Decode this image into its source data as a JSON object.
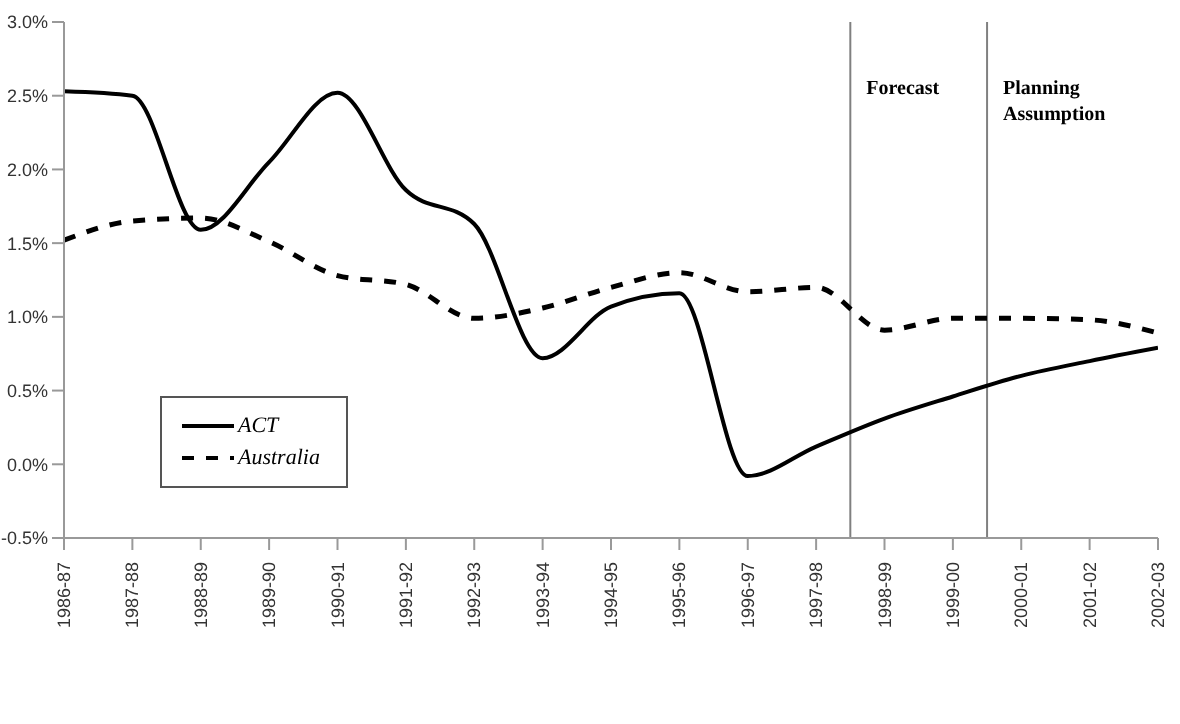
{
  "chart_data": {
    "type": "line",
    "categories": [
      "1986-87",
      "1987-88",
      "1988-89",
      "1989-90",
      "1990-91",
      "1991-92",
      "1992-93",
      "1993-94",
      "1994-95",
      "1995-96",
      "1996-97",
      "1997-98",
      "1998-99",
      "1999-00",
      "2000-01",
      "2001-02",
      "2002-03"
    ],
    "ylim": [
      -0.5,
      3.0
    ],
    "yticks": [
      {
        "value": -0.5,
        "label": "-0.5%"
      },
      {
        "value": 0,
        "label": "0.0%"
      },
      {
        "value": 0.5,
        "label": "0.5%"
      },
      {
        "value": 1.0,
        "label": "1.0%"
      },
      {
        "value": 1.5,
        "label": "1.5%"
      },
      {
        "value": 2.0,
        "label": "2.0%"
      },
      {
        "value": 2.5,
        "label": "2.5%"
      },
      {
        "value": 3.0,
        "label": "3.0%"
      }
    ],
    "series": [
      {
        "name": "ACT",
        "color": "#000000",
        "line_style": "solid",
        "values": [
          2.53,
          2.5,
          1.59,
          2.05,
          2.52,
          1.86,
          1.63,
          0.72,
          1.07,
          1.16,
          -0.08,
          0.12,
          0.31,
          0.46,
          0.6,
          0.7,
          0.79
        ]
      },
      {
        "name": "Australia",
        "color": "#000000",
        "line_style": "dashed",
        "values": [
          1.52,
          1.65,
          1.67,
          1.51,
          1.28,
          1.22,
          0.99,
          1.06,
          1.2,
          1.3,
          1.17,
          1.2,
          0.91,
          0.99,
          0.99,
          0.98,
          0.89
        ]
      }
    ],
    "annotations": [
      "Forecast",
      "Planning Assumption"
    ],
    "marker": "none",
    "legend": "left"
  }
}
